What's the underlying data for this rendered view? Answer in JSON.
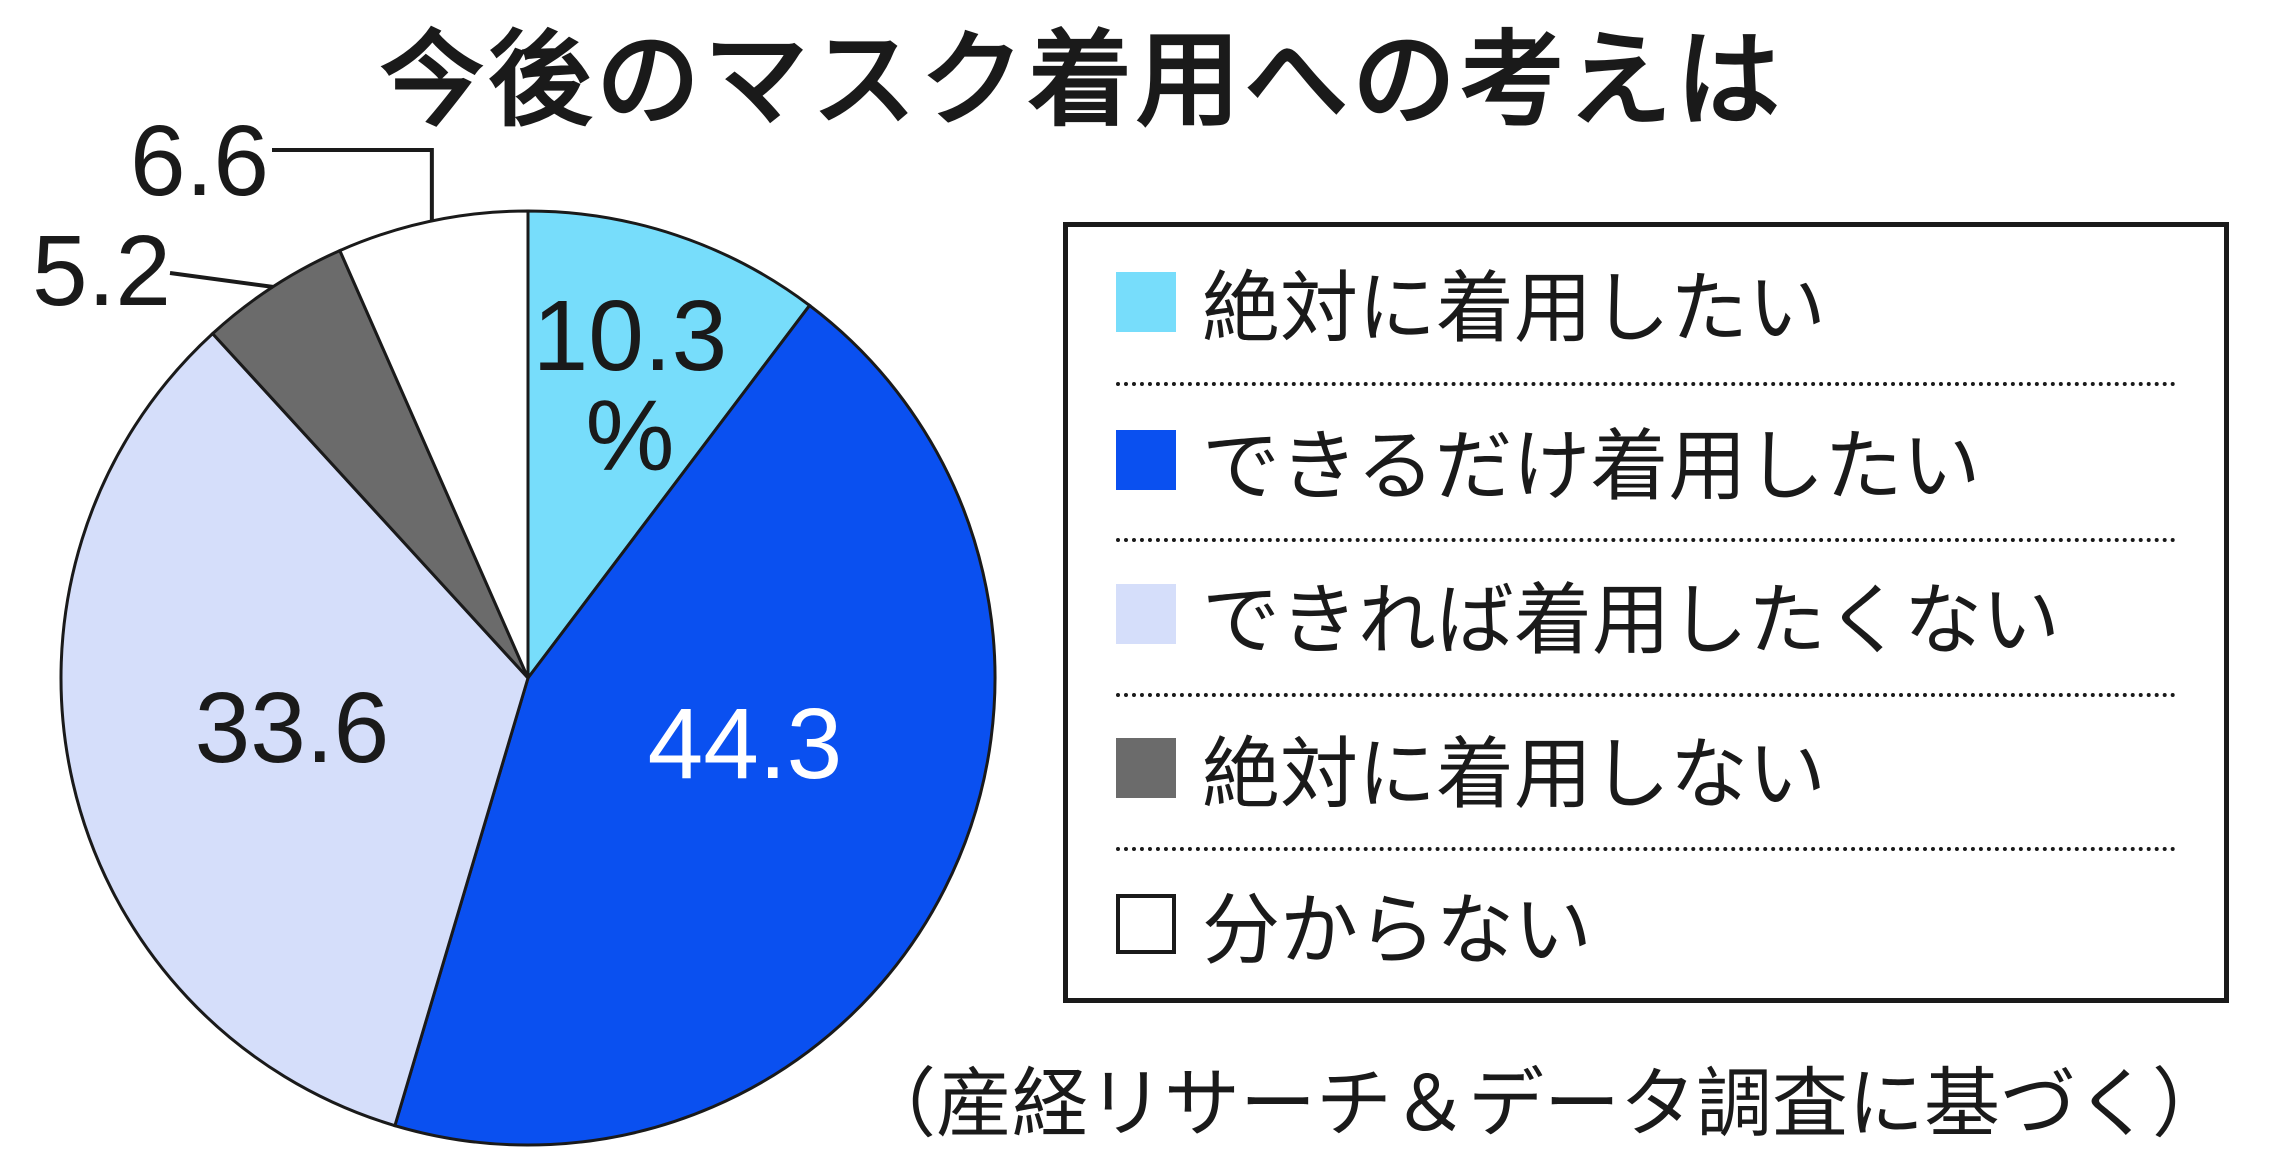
{
  "chart_data": {
    "type": "pie",
    "title": "今後のマスク着用への考えは",
    "unit": "%",
    "slices": [
      {
        "label": "絶対に着用したい",
        "value": 10.3,
        "color": "#77DDFB"
      },
      {
        "label": "できるだけ着用したい",
        "value": 44.3,
        "color": "#0A50F0"
      },
      {
        "label": "できれば着用したくない",
        "value": 33.6,
        "color": "#D5DEFA"
      },
      {
        "label": "絶対に着用しない",
        "value": 5.2,
        "color": "#6B6B6B"
      },
      {
        "label": "分からない",
        "value": 6.6,
        "color": "#FFFFFF"
      }
    ],
    "data_labels": [
      "10.3",
      "44.3",
      "33.6",
      "5.2",
      "6.6"
    ],
    "legend_placement": "right",
    "source": "（産経リサーチ＆データ調査に基づく）"
  }
}
